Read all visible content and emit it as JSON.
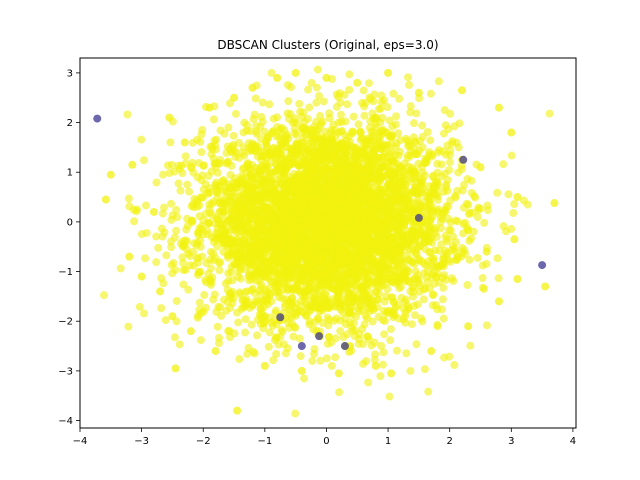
{
  "chart_data": {
    "type": "scatter",
    "title": "DBSCAN Clusters (Original, eps=3.0)",
    "xlabel": "",
    "ylabel": "",
    "xlim": [
      -4.0,
      4.05
    ],
    "ylim": [
      -4.15,
      3.3
    ],
    "xticks": [
      -4,
      -3,
      -2,
      -1,
      0,
      1,
      2,
      3,
      4
    ],
    "yticks": [
      -4,
      -3,
      -2,
      -1,
      0,
      1,
      2,
      3
    ],
    "grid": false,
    "legend": "none",
    "colors": {
      "cluster": "#f2f20f",
      "noise": "#3b358f",
      "background": "#ffffff",
      "axes": "#000000"
    },
    "series": [
      {
        "cluster_label": 0,
        "description": "main cluster (dense, approximately standard-normal cloud, ~5000 points)",
        "color": "#f2f20f",
        "points": [
          [
            -3.5,
            0.95
          ],
          [
            -3.58,
            0.45
          ],
          [
            -3.15,
            1.15
          ],
          [
            -3.2,
            -0.7
          ],
          [
            -3.0,
            -1.1
          ],
          [
            -2.8,
            0.2
          ],
          [
            -2.7,
            -1.4
          ],
          [
            -2.5,
            -1.9
          ],
          [
            -2.55,
            2.1
          ],
          [
            -2.45,
            -2.95
          ],
          [
            -2.3,
            1.6
          ],
          [
            -2.2,
            -2.2
          ],
          [
            -1.9,
            2.3
          ],
          [
            -1.8,
            -2.6
          ],
          [
            -1.45,
            -3.8
          ],
          [
            -1.5,
            2.5
          ],
          [
            -1.2,
            2.7
          ],
          [
            -1.0,
            -2.9
          ],
          [
            -0.8,
            2.9
          ],
          [
            -0.5,
            3.0
          ],
          [
            -0.4,
            -3.0
          ],
          [
            0.0,
            2.9
          ],
          [
            0.2,
            -3.05
          ],
          [
            0.5,
            2.8
          ],
          [
            0.8,
            -2.9
          ],
          [
            1.0,
            3.0
          ],
          [
            1.05,
            -3.05
          ],
          [
            1.5,
            2.6
          ],
          [
            1.7,
            -2.6
          ],
          [
            2.2,
            2.65
          ],
          [
            2.3,
            -2.1
          ],
          [
            2.8,
            2.3
          ],
          [
            2.8,
            -1.6
          ],
          [
            3.0,
            1.8
          ],
          [
            3.05,
            -0.35
          ],
          [
            3.1,
            0.5
          ],
          [
            3.7,
            0.38
          ],
          [
            3.55,
            -1.3
          ],
          [
            3.1,
            -1.15
          ],
          [
            2.5,
            1.1
          ],
          [
            2.6,
            -0.6
          ],
          [
            -1.0,
            -1.9
          ],
          [
            1.5,
            0.1
          ],
          [
            2.2,
            1.25
          ],
          [
            -0.75,
            -1.9
          ],
          [
            -0.1,
            -2.3
          ],
          [
            0.3,
            -2.5
          ]
        ]
      },
      {
        "cluster_label": -1,
        "description": "noise points",
        "color": "#3b358f",
        "points": [
          [
            -3.72,
            2.08
          ],
          [
            3.5,
            -0.87
          ],
          [
            -0.4,
            -2.5
          ],
          [
            0.3,
            -2.5
          ],
          [
            -0.75,
            -1.92
          ],
          [
            -0.12,
            -2.3
          ],
          [
            1.5,
            0.08
          ],
          [
            2.22,
            1.25
          ]
        ]
      }
    ]
  }
}
